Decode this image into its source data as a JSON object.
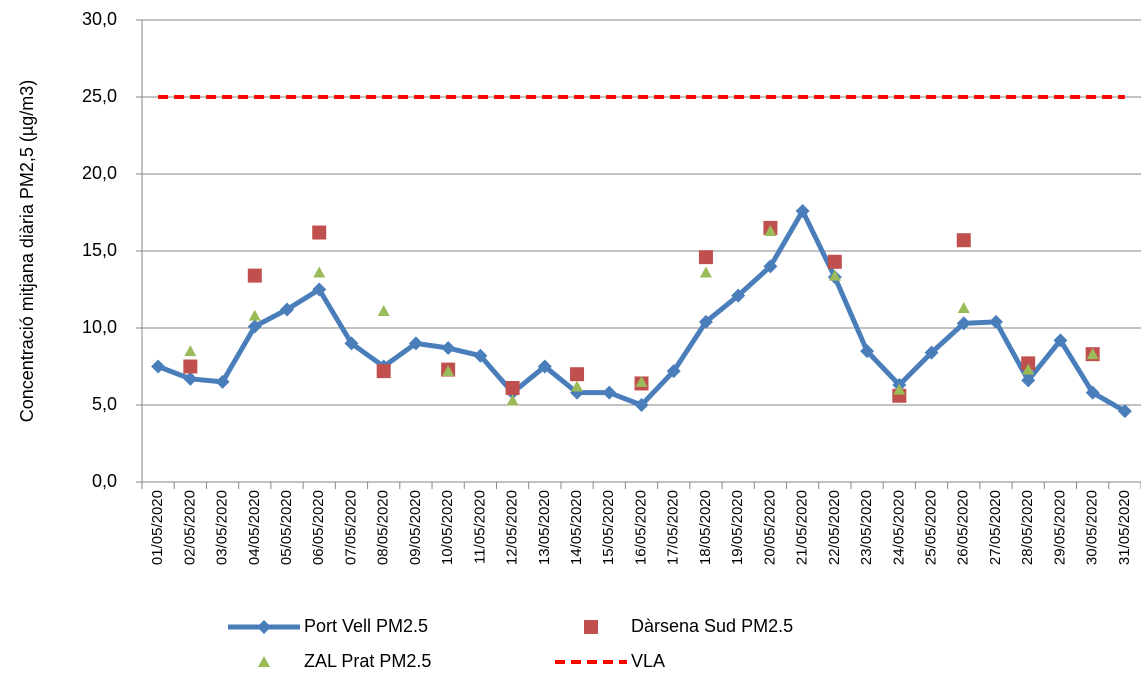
{
  "chart_data": {
    "type": "line",
    "y_label": "Concentració mitjana diària PM2,5 (µg/m3)",
    "categories": [
      "01/05/2020",
      "02/05/2020",
      "03/05/2020",
      "04/05/2020",
      "05/05/2020",
      "06/05/2020",
      "07/05/2020",
      "08/05/2020",
      "09/05/2020",
      "10/05/2020",
      "11/05/2020",
      "12/05/2020",
      "13/05/2020",
      "14/05/2020",
      "15/05/2020",
      "16/05/2020",
      "17/05/2020",
      "18/05/2020",
      "19/05/2020",
      "20/05/2020",
      "21/05/2020",
      "22/05/2020",
      "23/05/2020",
      "24/05/2020",
      "25/05/2020",
      "26/05/2020",
      "27/05/2020",
      "28/05/2020",
      "29/05/2020",
      "30/05/2020",
      "31/05/2020"
    ],
    "series": [
      {
        "name": "Port Vell PM2.5",
        "color": "#4a7ebb",
        "line": true,
        "dash": false,
        "marker": "diamond",
        "values": [
          7.5,
          6.7,
          6.5,
          10.1,
          11.2,
          12.5,
          9.0,
          7.5,
          9.0,
          8.7,
          8.2,
          5.8,
          7.5,
          5.8,
          5.8,
          5.0,
          7.2,
          10.4,
          12.1,
          14.0,
          17.6,
          13.3,
          8.5,
          6.3,
          8.4,
          10.3,
          10.4,
          6.6,
          9.2,
          5.8,
          4.6
        ]
      },
      {
        "name": "Dàrsena Sud PM2.5",
        "color": "#c0504d",
        "line": false,
        "dash": false,
        "marker": "square",
        "values": [
          null,
          7.5,
          null,
          13.4,
          null,
          16.2,
          null,
          7.2,
          null,
          7.3,
          null,
          6.1,
          null,
          7.0,
          null,
          6.4,
          null,
          14.6,
          null,
          16.5,
          null,
          14.3,
          null,
          5.6,
          null,
          15.7,
          null,
          7.7,
          null,
          8.3,
          null
        ]
      },
      {
        "name": "ZAL Prat PM2.5",
        "color": "#9bbb59",
        "line": false,
        "dash": false,
        "marker": "triangle",
        "values": [
          null,
          8.5,
          null,
          10.8,
          null,
          13.6,
          null,
          11.1,
          null,
          7.2,
          null,
          5.3,
          null,
          6.2,
          null,
          6.5,
          null,
          13.6,
          null,
          16.3,
          null,
          13.4,
          null,
          6.0,
          null,
          11.3,
          null,
          7.3,
          null,
          8.3,
          null
        ]
      },
      {
        "name": "VLA",
        "color": "#ff0000",
        "line": true,
        "dash": true,
        "marker": "none",
        "values": [
          25,
          25,
          25,
          25,
          25,
          25,
          25,
          25,
          25,
          25,
          25,
          25,
          25,
          25,
          25,
          25,
          25,
          25,
          25,
          25,
          25,
          25,
          25,
          25,
          25,
          25,
          25,
          25,
          25,
          25,
          25
        ]
      }
    ],
    "ylim": [
      0,
      30
    ],
    "yticks": [
      {
        "value": 0,
        "label": "0,0"
      },
      {
        "value": 5,
        "label": "5,0"
      },
      {
        "value": 10,
        "label": "10,0"
      },
      {
        "value": 15,
        "label": "15,0"
      },
      {
        "value": 20,
        "label": "20,0"
      },
      {
        "value": 25,
        "label": "25,0"
      },
      {
        "value": 30,
        "label": "30,0"
      }
    ],
    "grid": true,
    "legend": "bottom"
  }
}
